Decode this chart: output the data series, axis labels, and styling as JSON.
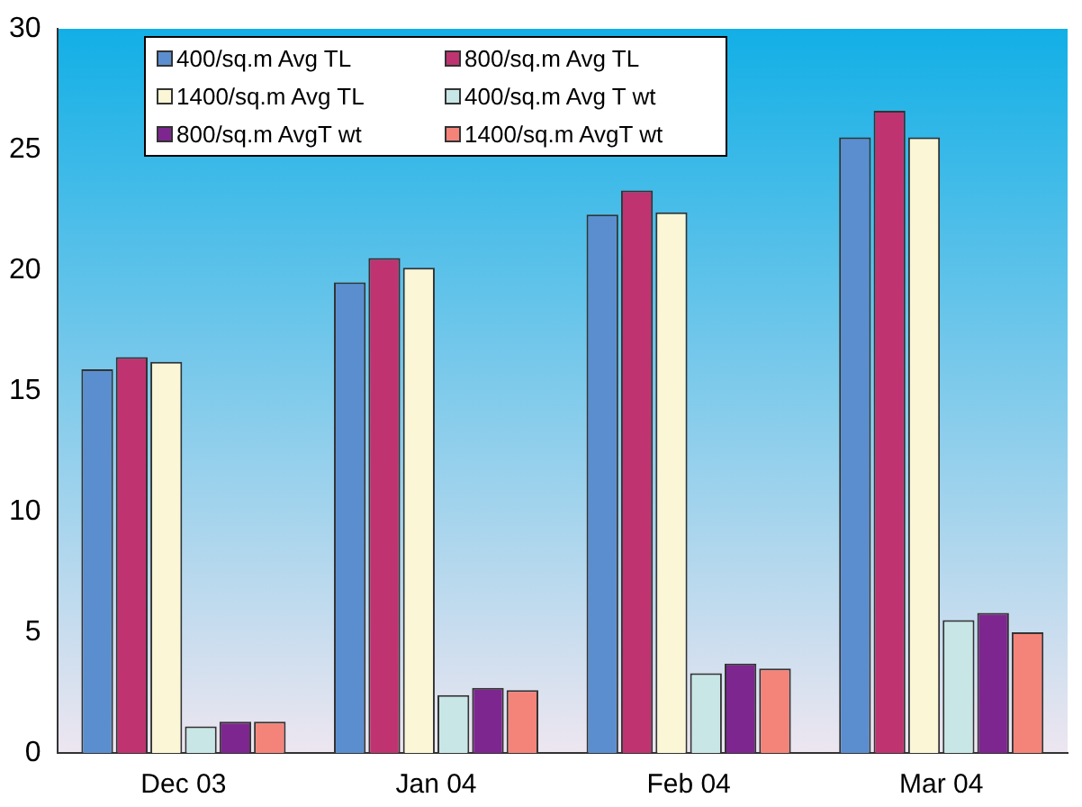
{
  "chart_data": {
    "type": "bar",
    "categories": [
      "Dec 03",
      "Jan 04",
      "Feb 04",
      "Mar 04"
    ],
    "series": [
      {
        "name": "400/sq.m Avg TL",
        "color": "#5b8ecf",
        "values": [
          15.9,
          19.5,
          22.3,
          25.5
        ]
      },
      {
        "name": "800/sq.m Avg TL",
        "color": "#bf3470",
        "values": [
          16.4,
          20.5,
          23.3,
          26.6
        ]
      },
      {
        "name": "1400/sq.m Avg TL",
        "color": "#fbf6d6",
        "values": [
          16.2,
          20.1,
          22.4,
          25.5
        ]
      },
      {
        "name": "400/sq.m Avg T wt",
        "color": "#c8e6e6",
        "values": [
          1.1,
          2.4,
          3.3,
          5.5
        ]
      },
      {
        "name": "800/sq.m AvgT wt",
        "color": "#7e268f",
        "values": [
          1.3,
          2.7,
          3.7,
          5.8
        ]
      },
      {
        "name": "1400/sq.m AvgT wt",
        "color": "#f4847a",
        "values": [
          1.3,
          2.6,
          3.5,
          5.0
        ]
      }
    ],
    "ylim": [
      0,
      30
    ],
    "yticks": [
      0,
      5,
      10,
      15,
      20,
      25,
      30
    ],
    "grid": false,
    "legend": "top left"
  }
}
